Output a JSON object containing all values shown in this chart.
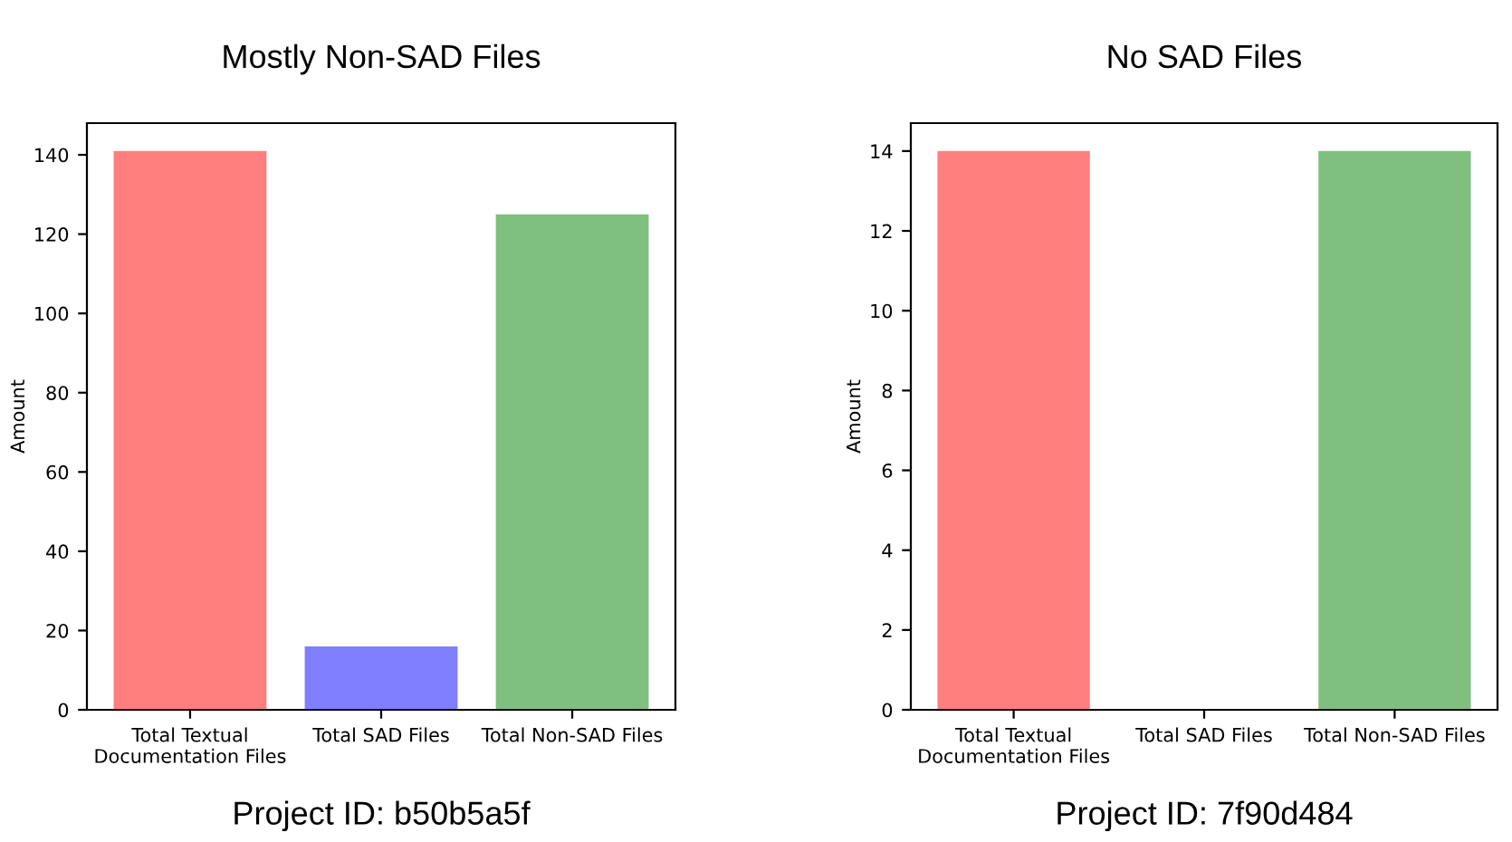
{
  "chart_data": [
    {
      "type": "bar",
      "title": "Mostly Non-SAD Files",
      "ylabel": "Amount",
      "categories": [
        "Total Textual\nDocumentation Files",
        "Total SAD Files",
        "Total Non-SAD Files"
      ],
      "values": [
        141,
        16,
        125
      ],
      "colors": [
        "#ff7f7f",
        "#7f7fff",
        "#7fbf7f"
      ],
      "ylim": [
        0,
        148
      ],
      "yticks": [
        0,
        20,
        40,
        60,
        80,
        100,
        120,
        140
      ],
      "grid": false,
      "annotations": [
        "Project ID: b50b5a5f"
      ]
    },
    {
      "type": "bar",
      "title": "No SAD Files",
      "ylabel": "Amount",
      "categories": [
        "Total Textual\nDocumentation Files",
        "Total SAD Files",
        "Total Non-SAD Files"
      ],
      "values": [
        14,
        0,
        14
      ],
      "colors": [
        "#ff7f7f",
        "#7f7fff",
        "#7fbf7f"
      ],
      "ylim": [
        0,
        14.7
      ],
      "yticks": [
        0,
        2,
        4,
        6,
        8,
        10,
        12,
        14
      ],
      "grid": false,
      "annotations": [
        "Project ID: 7f90d484"
      ]
    }
  ]
}
